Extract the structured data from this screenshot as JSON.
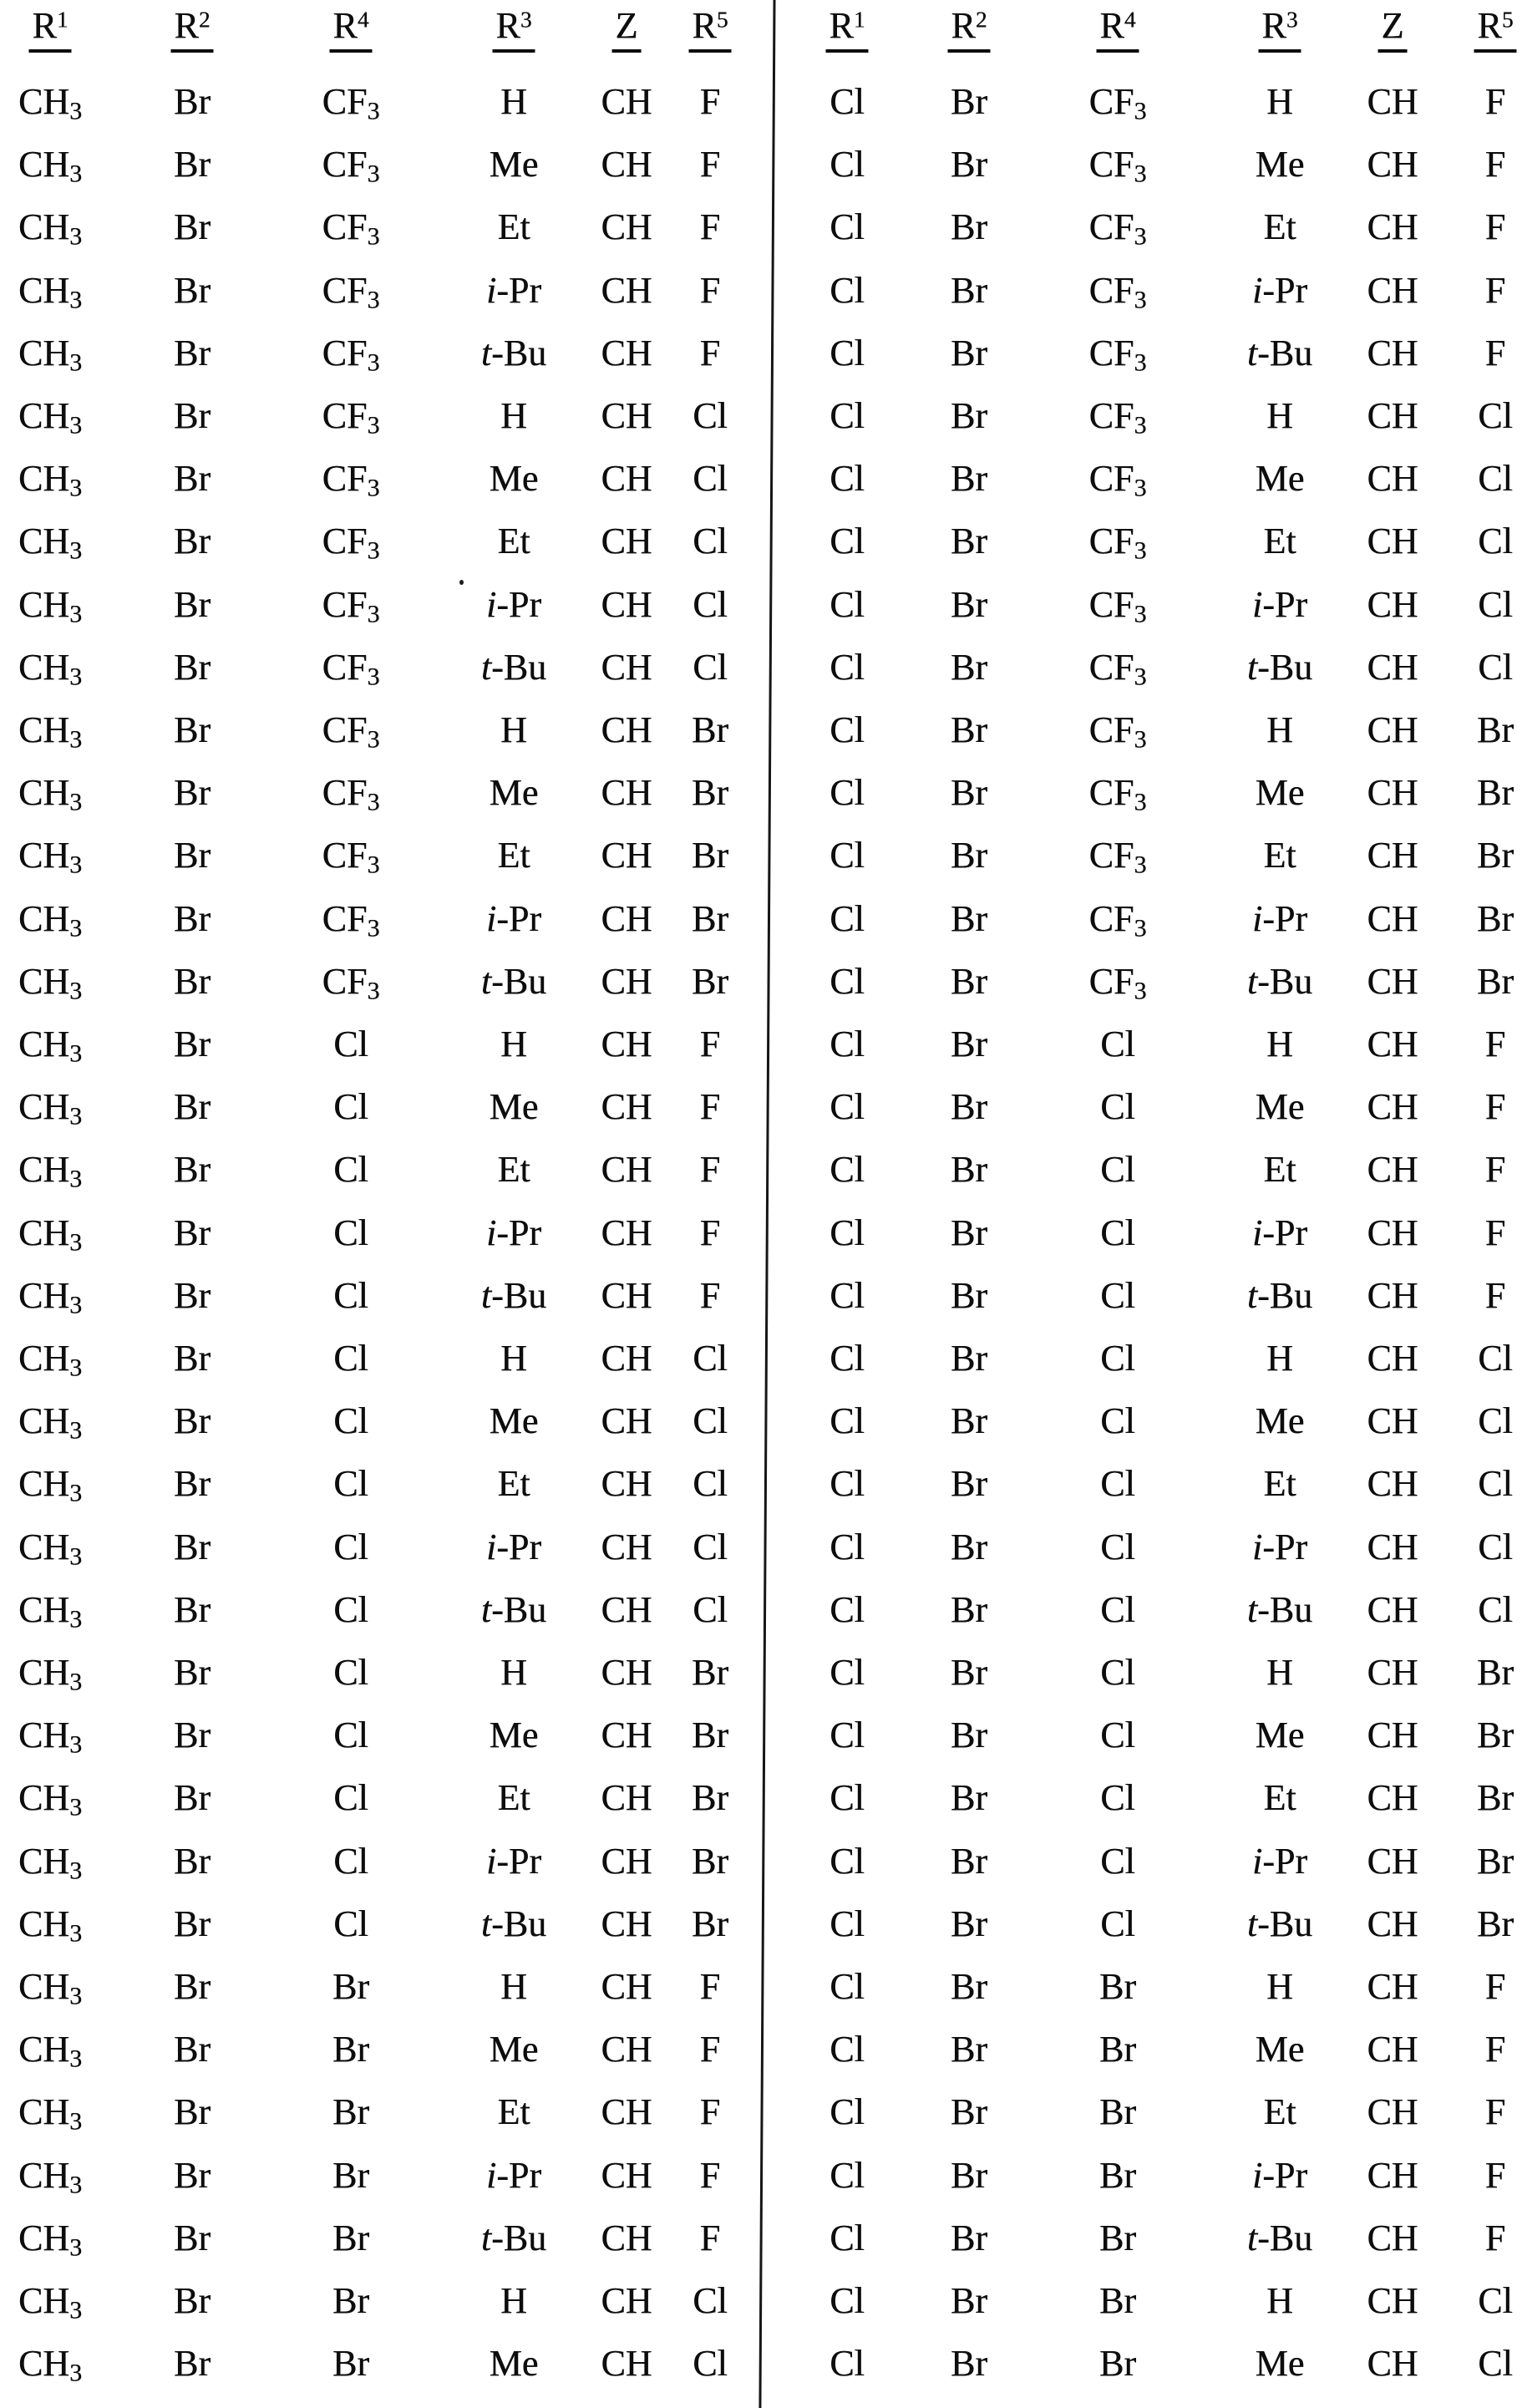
{
  "document": {
    "kind": "scanned substituent table page",
    "ink_color": "#0d0d0d",
    "paper_color": "#ffffff"
  },
  "tables": [
    {
      "side": "left",
      "headers": [
        "R^1",
        "R^2",
        "R^4",
        "R^3",
        "Z",
        "R^5"
      ],
      "rows": [
        [
          "CH_3",
          "Br",
          "CF_3",
          "H",
          "CH",
          "F"
        ],
        [
          "CH_3",
          "Br",
          "CF_3",
          "Me",
          "CH",
          "F"
        ],
        [
          "CH_3",
          "Br",
          "CF_3",
          "Et",
          "CH",
          "F"
        ],
        [
          "CH_3",
          "Br",
          "CF_3",
          "i-Pr",
          "CH",
          "F"
        ],
        [
          "CH_3",
          "Br",
          "CF_3",
          "t-Bu",
          "CH",
          "F"
        ],
        [
          "CH_3",
          "Br",
          "CF_3",
          "H",
          "CH",
          "Cl"
        ],
        [
          "CH_3",
          "Br",
          "CF_3",
          "Me",
          "CH",
          "Cl"
        ],
        [
          "CH_3",
          "Br",
          "CF_3",
          "Et",
          "CH",
          "Cl"
        ],
        [
          "CH_3",
          "Br",
          "CF_3",
          "i-Pr",
          "CH",
          "Cl"
        ],
        [
          "CH_3",
          "Br",
          "CF_3",
          "t-Bu",
          "CH",
          "Cl"
        ],
        [
          "CH_3",
          "Br",
          "CF_3",
          "H",
          "CH",
          "Br"
        ],
        [
          "CH_3",
          "Br",
          "CF_3",
          "Me",
          "CH",
          "Br"
        ],
        [
          "CH_3",
          "Br",
          "CF_3",
          "Et",
          "CH",
          "Br"
        ],
        [
          "CH_3",
          "Br",
          "CF_3",
          "i-Pr",
          "CH",
          "Br"
        ],
        [
          "CH_3",
          "Br",
          "CF_3",
          "t-Bu",
          "CH",
          "Br"
        ],
        [
          "CH_3",
          "Br",
          "Cl",
          "H",
          "CH",
          "F"
        ],
        [
          "CH_3",
          "Br",
          "Cl",
          "Me",
          "CH",
          "F"
        ],
        [
          "CH_3",
          "Br",
          "Cl",
          "Et",
          "CH",
          "F"
        ],
        [
          "CH_3",
          "Br",
          "Cl",
          "i-Pr",
          "CH",
          "F"
        ],
        [
          "CH_3",
          "Br",
          "Cl",
          "t-Bu",
          "CH",
          "F"
        ],
        [
          "CH_3",
          "Br",
          "Cl",
          "H",
          "CH",
          "Cl"
        ],
        [
          "CH_3",
          "Br",
          "Cl",
          "Me",
          "CH",
          "Cl"
        ],
        [
          "CH_3",
          "Br",
          "Cl",
          "Et",
          "CH",
          "Cl"
        ],
        [
          "CH_3",
          "Br",
          "Cl",
          "i-Pr",
          "CH",
          "Cl"
        ],
        [
          "CH_3",
          "Br",
          "Cl",
          "t-Bu",
          "CH",
          "Cl"
        ],
        [
          "CH_3",
          "Br",
          "Cl",
          "H",
          "CH",
          "Br"
        ],
        [
          "CH_3",
          "Br",
          "Cl",
          "Me",
          "CH",
          "Br"
        ],
        [
          "CH_3",
          "Br",
          "Cl",
          "Et",
          "CH",
          "Br"
        ],
        [
          "CH_3",
          "Br",
          "Cl",
          "i-Pr",
          "CH",
          "Br"
        ],
        [
          "CH_3",
          "Br",
          "Cl",
          "t-Bu",
          "CH",
          "Br"
        ],
        [
          "CH_3",
          "Br",
          "Br",
          "H",
          "CH",
          "F"
        ],
        [
          "CH_3",
          "Br",
          "Br",
          "Me",
          "CH",
          "F"
        ],
        [
          "CH_3",
          "Br",
          "Br",
          "Et",
          "CH",
          "F"
        ],
        [
          "CH_3",
          "Br",
          "Br",
          "i-Pr",
          "CH",
          "F"
        ],
        [
          "CH_3",
          "Br",
          "Br",
          "t-Bu",
          "CH",
          "F"
        ],
        [
          "CH_3",
          "Br",
          "Br",
          "H",
          "CH",
          "Cl"
        ],
        [
          "CH_3",
          "Br",
          "Br",
          "Me",
          "CH",
          "Cl"
        ]
      ]
    },
    {
      "side": "right",
      "headers": [
        "R^1",
        "R^2",
        "R^4",
        "R^3",
        "Z",
        "R^5"
      ],
      "rows": [
        [
          "Cl",
          "Br",
          "CF_3",
          "H",
          "CH",
          "F"
        ],
        [
          "Cl",
          "Br",
          "CF_3",
          "Me",
          "CH",
          "F"
        ],
        [
          "Cl",
          "Br",
          "CF_3",
          "Et",
          "CH",
          "F"
        ],
        [
          "Cl",
          "Br",
          "CF_3",
          "i-Pr",
          "CH",
          "F"
        ],
        [
          "Cl",
          "Br",
          "CF_3",
          "t-Bu",
          "CH",
          "F"
        ],
        [
          "Cl",
          "Br",
          "CF_3",
          "H",
          "CH",
          "Cl"
        ],
        [
          "Cl",
          "Br",
          "CF_3",
          "Me",
          "CH",
          "Cl"
        ],
        [
          "Cl",
          "Br",
          "CF_3",
          "Et",
          "CH",
          "Cl"
        ],
        [
          "Cl",
          "Br",
          "CF_3",
          "i-Pr",
          "CH",
          "Cl"
        ],
        [
          "Cl",
          "Br",
          "CF_3",
          "t-Bu",
          "CH",
          "Cl"
        ],
        [
          "Cl",
          "Br",
          "CF_3",
          "H",
          "CH",
          "Br"
        ],
        [
          "Cl",
          "Br",
          "CF_3",
          "Me",
          "CH",
          "Br"
        ],
        [
          "Cl",
          "Br",
          "CF_3",
          "Et",
          "CH",
          "Br"
        ],
        [
          "Cl",
          "Br",
          "CF_3",
          "i-Pr",
          "CH",
          "Br"
        ],
        [
          "Cl",
          "Br",
          "CF_3",
          "t-Bu",
          "CH",
          "Br"
        ],
        [
          "Cl",
          "Br",
          "Cl",
          "H",
          "CH",
          "F"
        ],
        [
          "Cl",
          "Br",
          "Cl",
          "Me",
          "CH",
          "F"
        ],
        [
          "Cl",
          "Br",
          "Cl",
          "Et",
          "CH",
          "F"
        ],
        [
          "Cl",
          "Br",
          "Cl",
          "i-Pr",
          "CH",
          "F"
        ],
        [
          "Cl",
          "Br",
          "Cl",
          "t-Bu",
          "CH",
          "F"
        ],
        [
          "Cl",
          "Br",
          "Cl",
          "H",
          "CH",
          "Cl"
        ],
        [
          "Cl",
          "Br",
          "Cl",
          "Me",
          "CH",
          "Cl"
        ],
        [
          "Cl",
          "Br",
          "Cl",
          "Et",
          "CH",
          "Cl"
        ],
        [
          "Cl",
          "Br",
          "Cl",
          "i-Pr",
          "CH",
          "Cl"
        ],
        [
          "Cl",
          "Br",
          "Cl",
          "t-Bu",
          "CH",
          "Cl"
        ],
        [
          "Cl",
          "Br",
          "Cl",
          "H",
          "CH",
          "Br"
        ],
        [
          "Cl",
          "Br",
          "Cl",
          "Me",
          "CH",
          "Br"
        ],
        [
          "Cl",
          "Br",
          "Cl",
          "Et",
          "CH",
          "Br"
        ],
        [
          "Cl",
          "Br",
          "Cl",
          "i-Pr",
          "CH",
          "Br"
        ],
        [
          "Cl",
          "Br",
          "Cl",
          "t-Bu",
          "CH",
          "Br"
        ],
        [
          "Cl",
          "Br",
          "Br",
          "H",
          "CH",
          "F"
        ],
        [
          "Cl",
          "Br",
          "Br",
          "Me",
          "CH",
          "F"
        ],
        [
          "Cl",
          "Br",
          "Br",
          "Et",
          "CH",
          "F"
        ],
        [
          "Cl",
          "Br",
          "Br",
          "i-Pr",
          "CH",
          "F"
        ],
        [
          "Cl",
          "Br",
          "Br",
          "t-Bu",
          "CH",
          "F"
        ],
        [
          "Cl",
          "Br",
          "Br",
          "H",
          "CH",
          "Cl"
        ],
        [
          "Cl",
          "Br",
          "Br",
          "Me",
          "CH",
          "Cl"
        ]
      ]
    }
  ]
}
